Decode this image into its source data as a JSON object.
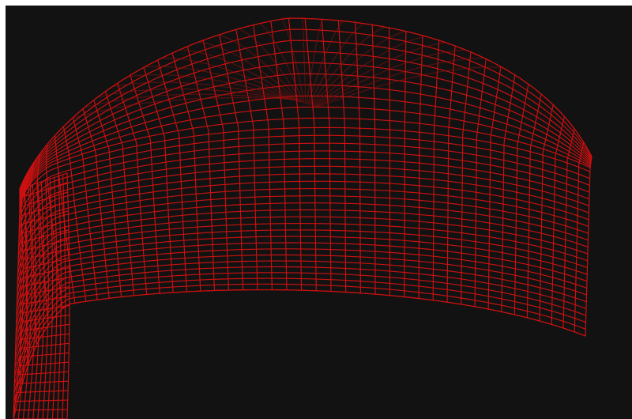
{
  "viewport": {
    "background_color": "#121212",
    "frame_color": "#ffffff"
  },
  "mesh": {
    "shape": "dome-cap wireframe",
    "line_color": "#cc1111",
    "back_line_color": "#8f1010"
  }
}
